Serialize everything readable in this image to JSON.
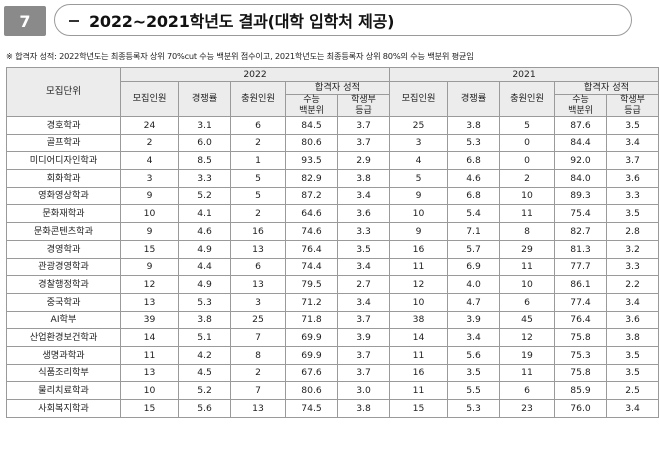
{
  "section_number": "7",
  "title": "2022~2021학년도 결과(대학 입학처 제공)",
  "note": "※ 합격자 성적: 2022학년도는 최종등록자 상위 70%cut 수능 백분위 점수이고, 2021학년도는 최종등록자 상위 80%의 수능 백분위 평균임",
  "headers": {
    "dept": "모집단위",
    "year_2022": "2022",
    "year_2021": "2021",
    "recruit": "모집인원",
    "competition": "경쟁률",
    "extra": "충원인원",
    "score_group": "합격자 성적",
    "suneung_pct": "수능\n백분위",
    "grade": "학생부\n등급"
  },
  "rows": [
    {
      "dept": "경호학과",
      "y22": [
        "24",
        "3.1",
        "6",
        "84.5",
        "3.7"
      ],
      "y21": [
        "25",
        "3.8",
        "5",
        "87.6",
        "3.5"
      ]
    },
    {
      "dept": "골프학과",
      "y22": [
        "2",
        "6.0",
        "2",
        "80.6",
        "3.7"
      ],
      "y21": [
        "3",
        "5.3",
        "0",
        "84.4",
        "3.4"
      ]
    },
    {
      "dept": "미디어디자인학과",
      "y22": [
        "4",
        "8.5",
        "1",
        "93.5",
        "2.9"
      ],
      "y21": [
        "4",
        "6.8",
        "0",
        "92.0",
        "3.7"
      ]
    },
    {
      "dept": "회화학과",
      "y22": [
        "3",
        "3.3",
        "5",
        "82.9",
        "3.8"
      ],
      "y21": [
        "5",
        "4.6",
        "2",
        "84.0",
        "3.6"
      ]
    },
    {
      "dept": "영화영상학과",
      "y22": [
        "9",
        "5.2",
        "5",
        "87.2",
        "3.4"
      ],
      "y21": [
        "9",
        "6.8",
        "10",
        "89.3",
        "3.3"
      ]
    },
    {
      "dept": "문화재학과",
      "y22": [
        "10",
        "4.1",
        "2",
        "64.6",
        "3.6"
      ],
      "y21": [
        "10",
        "5.4",
        "11",
        "75.4",
        "3.5"
      ]
    },
    {
      "dept": "문화콘텐츠학과",
      "y22": [
        "9",
        "4.6",
        "16",
        "74.6",
        "3.3"
      ],
      "y21": [
        "9",
        "7.1",
        "8",
        "82.7",
        "2.8"
      ]
    },
    {
      "dept": "경영학과",
      "y22": [
        "15",
        "4.9",
        "13",
        "76.4",
        "3.5"
      ],
      "y21": [
        "16",
        "5.7",
        "29",
        "81.3",
        "3.2"
      ]
    },
    {
      "dept": "관광경영학과",
      "y22": [
        "9",
        "4.4",
        "6",
        "74.4",
        "3.4"
      ],
      "y21": [
        "11",
        "6.9",
        "11",
        "77.7",
        "3.3"
      ]
    },
    {
      "dept": "경찰행정학과",
      "y22": [
        "12",
        "4.9",
        "13",
        "79.5",
        "2.7"
      ],
      "y21": [
        "12",
        "4.0",
        "10",
        "86.1",
        "2.2"
      ]
    },
    {
      "dept": "중국학과",
      "y22": [
        "13",
        "5.3",
        "3",
        "71.2",
        "3.4"
      ],
      "y21": [
        "10",
        "4.7",
        "6",
        "77.4",
        "3.4"
      ]
    },
    {
      "dept": "AI학부",
      "y22": [
        "39",
        "3.8",
        "25",
        "71.8",
        "3.7"
      ],
      "y21": [
        "38",
        "3.9",
        "45",
        "76.4",
        "3.6"
      ]
    },
    {
      "dept": "산업환경보건학과",
      "y22": [
        "14",
        "5.1",
        "7",
        "69.9",
        "3.9"
      ],
      "y21": [
        "14",
        "3.4",
        "12",
        "75.8",
        "3.8"
      ]
    },
    {
      "dept": "생명과학과",
      "y22": [
        "11",
        "4.2",
        "8",
        "69.9",
        "3.7"
      ],
      "y21": [
        "11",
        "5.6",
        "19",
        "75.3",
        "3.5"
      ]
    },
    {
      "dept": "식품조리학부",
      "y22": [
        "13",
        "4.5",
        "2",
        "67.6",
        "3.7"
      ],
      "y21": [
        "16",
        "3.5",
        "11",
        "75.8",
        "3.5"
      ]
    },
    {
      "dept": "물리치료학과",
      "y22": [
        "10",
        "5.2",
        "7",
        "80.6",
        "3.0"
      ],
      "y21": [
        "11",
        "5.5",
        "6",
        "85.9",
        "2.5"
      ]
    },
    {
      "dept": "사회복지학과",
      "y22": [
        "15",
        "5.6",
        "13",
        "74.5",
        "3.8"
      ],
      "y21": [
        "15",
        "5.3",
        "23",
        "76.0",
        "3.4"
      ]
    }
  ]
}
